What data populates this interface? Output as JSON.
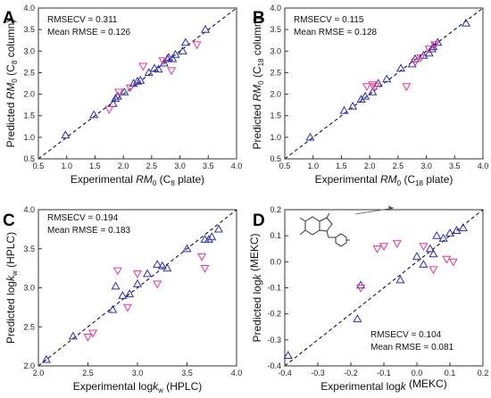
{
  "colors": {
    "blue": "#2d2db4",
    "pink": "#e8338f"
  },
  "chart_data": [
    {
      "type": "scatter",
      "panel": "A",
      "ylabel_parts": [
        "Predicted ",
        "RM",
        "0",
        " (C",
        "8",
        " column)"
      ],
      "xlabel_parts": [
        "Experimental ",
        "RM",
        "0",
        " (C",
        "8",
        " plate)"
      ],
      "annotations": [
        "RMSECV = 0.311",
        "Mean RMSE = 0.126"
      ],
      "xlim": [
        0.5,
        4.0
      ],
      "ylim": [
        0.5,
        4.0
      ],
      "xticks": [
        "0.5",
        "1.0",
        "1.5",
        "2.0",
        "2.5",
        "3.0",
        "3.5",
        "4.0"
      ],
      "yticks": [
        "0.5",
        "1.0",
        "1.5",
        "2.0",
        "2.5",
        "3.0",
        "3.5",
        "4.0"
      ],
      "series": [
        {
          "color": "blue",
          "marker": "triangle-up",
          "x": [
            0.98,
            1.48,
            1.82,
            1.86,
            1.9,
            2.02,
            2.18,
            2.25,
            2.3,
            2.45,
            2.55,
            2.62,
            2.72,
            2.78,
            2.8,
            2.87,
            2.92,
            3.05,
            3.1,
            3.45
          ],
          "y": [
            1.05,
            1.52,
            1.78,
            1.9,
            1.95,
            2.05,
            2.25,
            2.3,
            2.32,
            2.5,
            2.6,
            2.58,
            2.72,
            2.82,
            2.85,
            2.82,
            2.92,
            3.0,
            3.2,
            3.5
          ]
        },
        {
          "color": "pink",
          "marker": "triangle-down",
          "x": [
            1.75,
            1.92,
            2.12,
            2.35,
            2.7,
            2.85,
            3.3
          ],
          "y": [
            1.65,
            2.05,
            2.15,
            2.65,
            2.78,
            2.55,
            3.15
          ]
        }
      ]
    },
    {
      "type": "scatter",
      "panel": "B",
      "ylabel_parts": [
        "Predicted ",
        "RM",
        "0",
        " (C",
        "18",
        " column)"
      ],
      "xlabel_parts": [
        "Experimental ",
        "RM",
        "0",
        " (C",
        "18",
        " plate)"
      ],
      "annotations": [
        "RMSECV = 0.115",
        "Mean RMSE = 0.128"
      ],
      "xlim": [
        0.5,
        4.0
      ],
      "ylim": [
        0.5,
        4.0
      ],
      "xticks": [
        "0.5",
        "1.0",
        "1.5",
        "2.0",
        "2.5",
        "3.0",
        "3.5",
        "4.0"
      ],
      "yticks": [
        "0.5",
        "1.0",
        "1.5",
        "2.0",
        "2.5",
        "3.0",
        "3.5",
        "4.0"
      ],
      "series": [
        {
          "color": "blue",
          "marker": "triangle-up",
          "x": [
            0.95,
            1.55,
            1.7,
            1.85,
            1.92,
            2.05,
            2.15,
            2.3,
            2.55,
            2.75,
            2.8,
            2.95,
            3.05,
            3.1,
            3.12,
            3.2,
            3.7
          ],
          "y": [
            1.0,
            1.62,
            1.72,
            1.88,
            1.95,
            2.05,
            2.25,
            2.35,
            2.6,
            2.7,
            2.82,
            2.9,
            2.95,
            3.05,
            3.1,
            3.2,
            3.65
          ]
        },
        {
          "color": "pink",
          "marker": "triangle-down",
          "x": [
            1.95,
            2.05,
            2.1,
            2.65,
            2.8,
            2.9,
            3.05,
            3.15
          ],
          "y": [
            2.18,
            2.22,
            2.18,
            2.18,
            2.75,
            2.85,
            3.05,
            3.15
          ]
        }
      ]
    },
    {
      "type": "scatter",
      "panel": "C",
      "ylabel_parts": [
        "Predicted log",
        "k",
        "w",
        " (HPLC)"
      ],
      "xlabel_parts": [
        "Experimental log",
        "k",
        "w",
        " (HPLC)"
      ],
      "annotations": [
        "RMSECV = 0.194",
        "Mean RMSE = 0.183"
      ],
      "xlim": [
        2.0,
        4.0
      ],
      "ylim": [
        2.0,
        4.0
      ],
      "xticks": [
        "2.0",
        "2.5",
        "3.0",
        "3.5",
        "4.0"
      ],
      "yticks": [
        "2.0",
        "2.5",
        "3.0",
        "3.5",
        "4.0"
      ],
      "series": [
        {
          "color": "blue",
          "marker": "triangle-up",
          "x": [
            2.08,
            2.35,
            2.75,
            2.78,
            2.85,
            2.92,
            3.0,
            3.1,
            3.2,
            3.25,
            3.3,
            3.5,
            3.68,
            3.72,
            3.75,
            3.82
          ],
          "y": [
            2.08,
            2.38,
            2.72,
            3.02,
            2.9,
            2.92,
            3.05,
            3.18,
            3.3,
            3.28,
            3.25,
            3.5,
            3.62,
            3.62,
            3.65,
            3.75
          ]
        },
        {
          "color": "pink",
          "marker": "triangle-down",
          "x": [
            2.5,
            2.55,
            2.8,
            2.9,
            3.0,
            3.2,
            3.65,
            3.68
          ],
          "y": [
            2.37,
            2.42,
            3.22,
            2.75,
            3.18,
            3.05,
            3.4,
            3.25
          ]
        }
      ]
    },
    {
      "type": "scatter",
      "panel": "D",
      "ylabel_parts": [
        "Predicted log",
        "k",
        "",
        " (MEKC)"
      ],
      "xlabel_parts": [
        "Experimental log",
        "k",
        "",
        " (MEKC)"
      ],
      "annotations": [
        "RMSECV = 0.104",
        "Mean RMSE = 0.081"
      ],
      "xlim": [
        -0.4,
        0.2
      ],
      "ylim": [
        -0.4,
        0.2
      ],
      "xticks": [
        "-0.4",
        "-0.3",
        "-0.2",
        "-0.1",
        "0.0",
        "0.1",
        "0.2"
      ],
      "yticks": [
        "-0.4",
        "-0.3",
        "-0.2",
        "-0.1",
        "0.0",
        "0.1",
        "0.2"
      ],
      "series": [
        {
          "color": "blue",
          "marker": "triangle-up",
          "x": [
            -0.39,
            -0.18,
            -0.17,
            -0.05,
            0.0,
            0.02,
            0.04,
            0.05,
            0.06,
            0.08,
            0.1,
            0.12,
            0.14
          ],
          "y": [
            -0.36,
            -0.22,
            -0.09,
            -0.07,
            0.02,
            -0.01,
            0.05,
            0.03,
            0.1,
            0.09,
            0.11,
            0.12,
            0.13
          ]
        },
        {
          "color": "pink",
          "marker": "triangle-down",
          "x": [
            -0.17,
            -0.12,
            -0.1,
            -0.06,
            0.02,
            0.05,
            0.09,
            0.11
          ],
          "y": [
            -0.1,
            0.05,
            0.06,
            0.07,
            0.06,
            -0.03,
            0.01,
            0.0
          ]
        }
      ]
    }
  ]
}
